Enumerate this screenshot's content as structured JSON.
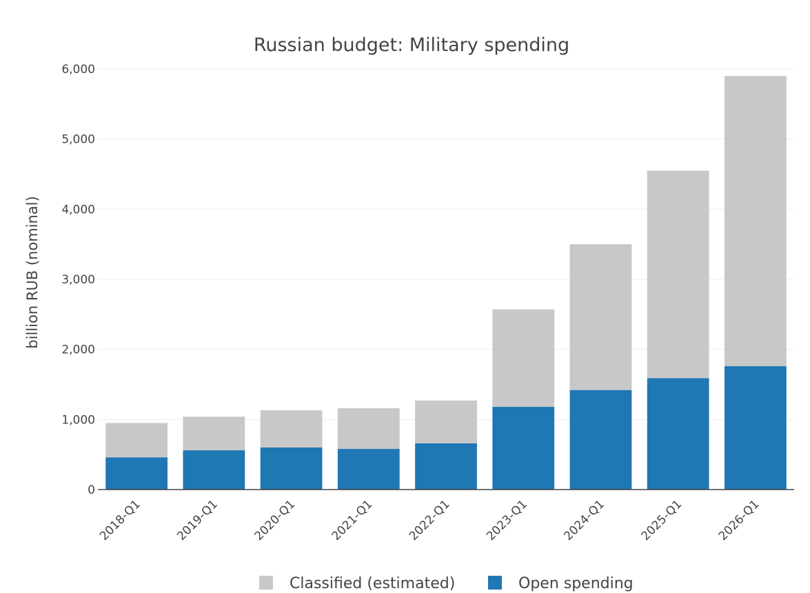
{
  "chart_data": {
    "type": "bar",
    "stacked": true,
    "title": "Russian budget: Military spending",
    "xlabel": "",
    "ylabel": "billion RUB (nominal)",
    "ylim": [
      0,
      6000
    ],
    "yticks": [
      0,
      1000,
      2000,
      3000,
      4000,
      5000,
      6000
    ],
    "ytick_labels": [
      "0",
      "1,000",
      "2,000",
      "3,000",
      "4,000",
      "5,000",
      "6,000"
    ],
    "grid": true,
    "legend_position": "bottom-center",
    "categories": [
      "2018-Q1",
      "2019-Q1",
      "2020-Q1",
      "2021-Q1",
      "2022-Q1",
      "2023-Q1",
      "2024-Q1",
      "2025-Q1",
      "2026-Q1"
    ],
    "series": [
      {
        "name": "Open spending",
        "color": "#1f77b4",
        "values": [
          460,
          560,
          600,
          580,
          660,
          1180,
          1420,
          1590,
          1760
        ]
      },
      {
        "name": "Classified (estimated)",
        "color": "#c8c8c8",
        "values": [
          490,
          480,
          530,
          580,
          610,
          1390,
          2080,
          2960,
          4140
        ]
      }
    ],
    "legend_order": [
      "Classified (estimated)",
      "Open spending"
    ]
  }
}
